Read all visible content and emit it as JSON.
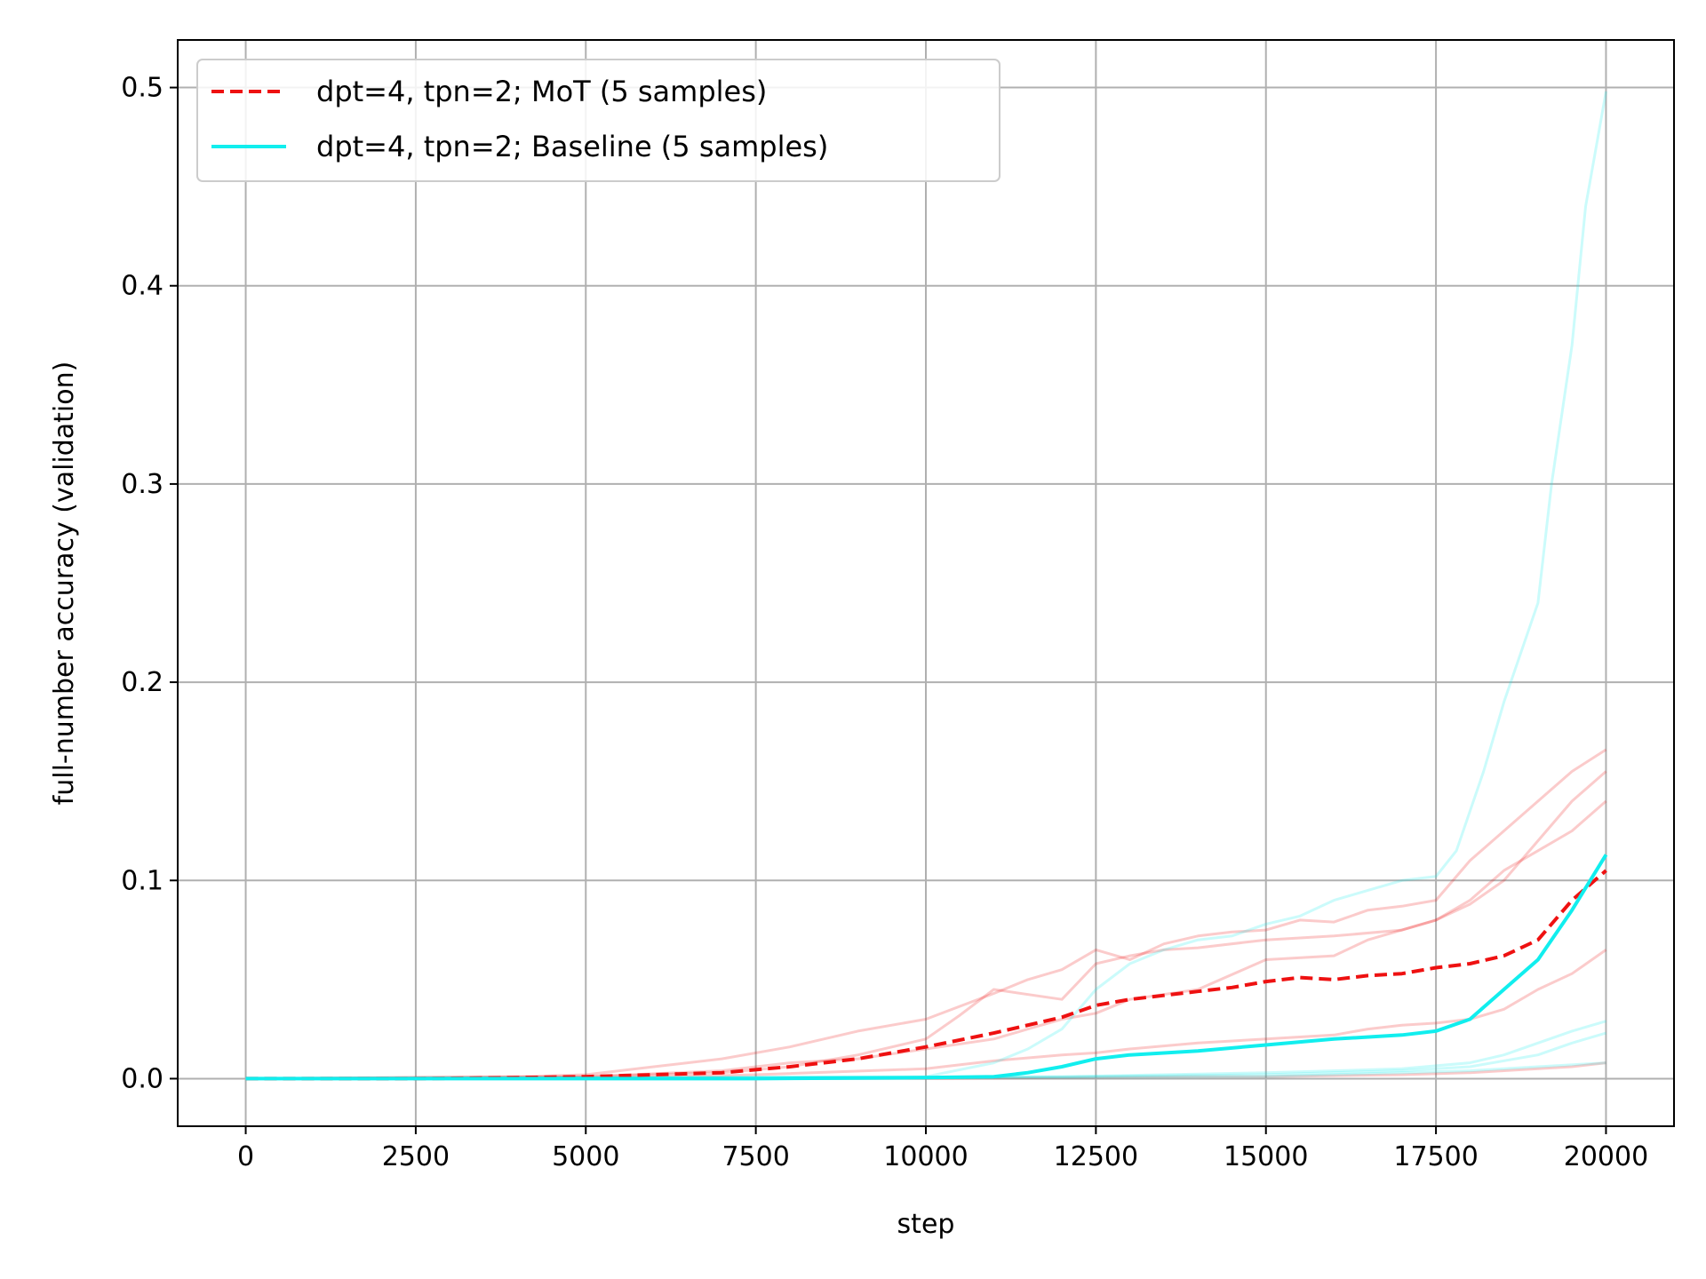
{
  "chart_data": {
    "type": "line",
    "title": "",
    "xlabel": "step",
    "ylabel": "full-number accuracy (validation)",
    "xlim": [
      -1000,
      21000
    ],
    "ylim": [
      -0.024,
      0.524
    ],
    "xticks": [
      0,
      2500,
      5000,
      7500,
      10000,
      12500,
      15000,
      17500,
      20000
    ],
    "xtick_labels": [
      "0",
      "2500",
      "5000",
      "7500",
      "10000",
      "12500",
      "15000",
      "17500",
      "20000"
    ],
    "yticks": [
      0.0,
      0.1,
      0.2,
      0.3,
      0.4,
      0.5
    ],
    "ytick_labels": [
      "0.0",
      "0.1",
      "0.2",
      "0.3",
      "0.4",
      "0.5"
    ],
    "grid": true,
    "legend_position": "top-left",
    "colors": {
      "mot": "#ee1111",
      "baseline": "#11eeee",
      "grid": "#b0b0b0"
    },
    "series": [
      {
        "name": "dpt=4, tpn=2; MoT (5 samples)",
        "style": "dashed",
        "color": "#ee1111",
        "width": 4,
        "opacity": 1,
        "x": [
          0,
          2500,
          4000,
          5000,
          6000,
          7000,
          8000,
          9000,
          10000,
          11000,
          12000,
          12500,
          13000,
          13500,
          14000,
          14500,
          15000,
          15500,
          16000,
          16500,
          17000,
          17500,
          18000,
          18500,
          19000,
          19500,
          20000
        ],
        "y": [
          0,
          0,
          0.0005,
          0.001,
          0.002,
          0.003,
          0.006,
          0.01,
          0.016,
          0.023,
          0.031,
          0.037,
          0.04,
          0.042,
          0.044,
          0.046,
          0.049,
          0.051,
          0.05,
          0.052,
          0.053,
          0.056,
          0.058,
          0.062,
          0.07,
          0.09,
          0.105
        ]
      },
      {
        "name": "dpt=4, tpn=2; Baseline (5 samples)",
        "style": "solid",
        "color": "#11eeee",
        "width": 4,
        "opacity": 1,
        "x": [
          0,
          2500,
          5000,
          7500,
          10000,
          11000,
          11500,
          12000,
          12500,
          13000,
          14000,
          15000,
          16000,
          17000,
          17500,
          18000,
          18500,
          19000,
          19500,
          20000
        ],
        "y": [
          0,
          0,
          0,
          0,
          0.0005,
          0.001,
          0.003,
          0.006,
          0.01,
          0.012,
          0.014,
          0.017,
          0.02,
          0.022,
          0.024,
          0.03,
          0.045,
          0.06,
          0.085,
          0.113
        ]
      },
      {
        "style": "solid",
        "color": "#ee1111",
        "width": 3,
        "opacity": 0.22,
        "x": [
          0,
          4000,
          5000,
          6000,
          7000,
          8000,
          9000,
          10000,
          11000,
          11500,
          12000,
          12500,
          13000,
          13500,
          14000,
          14500,
          15000,
          15500,
          16000,
          16500,
          17000,
          17500,
          18000,
          18500,
          19000,
          19500,
          20000
        ],
        "y": [
          0,
          0.001,
          0.002,
          0.006,
          0.01,
          0.016,
          0.024,
          0.03,
          0.043,
          0.05,
          0.055,
          0.065,
          0.06,
          0.068,
          0.072,
          0.074,
          0.075,
          0.08,
          0.079,
          0.085,
          0.087,
          0.09,
          0.11,
          0.125,
          0.14,
          0.155,
          0.166
        ]
      },
      {
        "style": "solid",
        "color": "#ee1111",
        "width": 3,
        "opacity": 0.22,
        "x": [
          0,
          5000,
          7000,
          8000,
          9000,
          10000,
          10500,
          11000,
          12000,
          12500,
          13000,
          13500,
          14000,
          15000,
          16000,
          17000,
          17500,
          18000,
          18500,
          19000,
          19500,
          20000
        ],
        "y": [
          0,
          0.001,
          0.003,
          0.006,
          0.012,
          0.02,
          0.032,
          0.045,
          0.04,
          0.058,
          0.062,
          0.065,
          0.066,
          0.07,
          0.072,
          0.075,
          0.08,
          0.088,
          0.1,
          0.12,
          0.14,
          0.155
        ]
      },
      {
        "style": "solid",
        "color": "#ee1111",
        "width": 3,
        "opacity": 0.22,
        "x": [
          0,
          5000,
          7000,
          8000,
          9000,
          10000,
          11000,
          11500,
          12000,
          12500,
          13000,
          14000,
          15000,
          16000,
          16500,
          17000,
          17500,
          18000,
          18500,
          19000,
          19500,
          20000
        ],
        "y": [
          0,
          0.001,
          0.004,
          0.008,
          0.01,
          0.015,
          0.02,
          0.025,
          0.03,
          0.033,
          0.04,
          0.045,
          0.06,
          0.062,
          0.07,
          0.075,
          0.08,
          0.09,
          0.105,
          0.115,
          0.125,
          0.14
        ]
      },
      {
        "style": "solid",
        "color": "#ee1111",
        "width": 3,
        "opacity": 0.22,
        "x": [
          0,
          5000,
          7500,
          10000,
          11000,
          12000,
          12500,
          13000,
          14000,
          15000,
          16000,
          16500,
          17000,
          17500,
          18000,
          18500,
          19000,
          19500,
          20000
        ],
        "y": [
          0,
          0,
          0.002,
          0.005,
          0.009,
          0.012,
          0.013,
          0.015,
          0.018,
          0.02,
          0.022,
          0.025,
          0.027,
          0.028,
          0.03,
          0.035,
          0.045,
          0.053,
          0.065
        ]
      },
      {
        "style": "solid",
        "color": "#ee1111",
        "width": 3,
        "opacity": 0.22,
        "x": [
          0,
          10000,
          12000,
          14000,
          15000,
          16000,
          17000,
          18000,
          18500,
          19000,
          19500,
          20000
        ],
        "y": [
          0,
          0,
          0.0005,
          0.001,
          0.001,
          0.0015,
          0.002,
          0.003,
          0.004,
          0.005,
          0.006,
          0.008
        ]
      },
      {
        "style": "solid",
        "color": "#11eeee",
        "width": 3,
        "opacity": 0.22,
        "x": [
          0,
          10000,
          11000,
          11500,
          12000,
          12500,
          13000,
          13500,
          14000,
          14500,
          15000,
          15500,
          16000,
          16500,
          17000,
          17500,
          17800,
          18000,
          18200,
          18500,
          18700,
          19000,
          19200,
          19500,
          19700,
          20000
        ],
        "y": [
          0,
          0.001,
          0.008,
          0.015,
          0.025,
          0.045,
          0.058,
          0.065,
          0.07,
          0.072,
          0.078,
          0.082,
          0.09,
          0.095,
          0.1,
          0.102,
          0.115,
          0.135,
          0.155,
          0.19,
          0.21,
          0.24,
          0.3,
          0.37,
          0.44,
          0.498
        ]
      },
      {
        "style": "solid",
        "color": "#11eeee",
        "width": 3,
        "opacity": 0.22,
        "x": [
          0,
          12000,
          15000,
          17000,
          18000,
          18500,
          19000,
          19500,
          20000
        ],
        "y": [
          0,
          0.001,
          0.003,
          0.005,
          0.008,
          0.012,
          0.018,
          0.024,
          0.029
        ]
      },
      {
        "style": "solid",
        "color": "#11eeee",
        "width": 3,
        "opacity": 0.22,
        "x": [
          0,
          12000,
          15000,
          17000,
          18000,
          19000,
          19500,
          20000
        ],
        "y": [
          0,
          0.001,
          0.002,
          0.004,
          0.006,
          0.012,
          0.018,
          0.023
        ]
      },
      {
        "style": "solid",
        "color": "#11eeee",
        "width": 3,
        "opacity": 0.22,
        "x": [
          0,
          12000,
          15000,
          17000,
          18000,
          19000,
          20000
        ],
        "y": [
          0,
          0.0005,
          0.001,
          0.003,
          0.004,
          0.006,
          0.008
        ]
      }
    ]
  }
}
